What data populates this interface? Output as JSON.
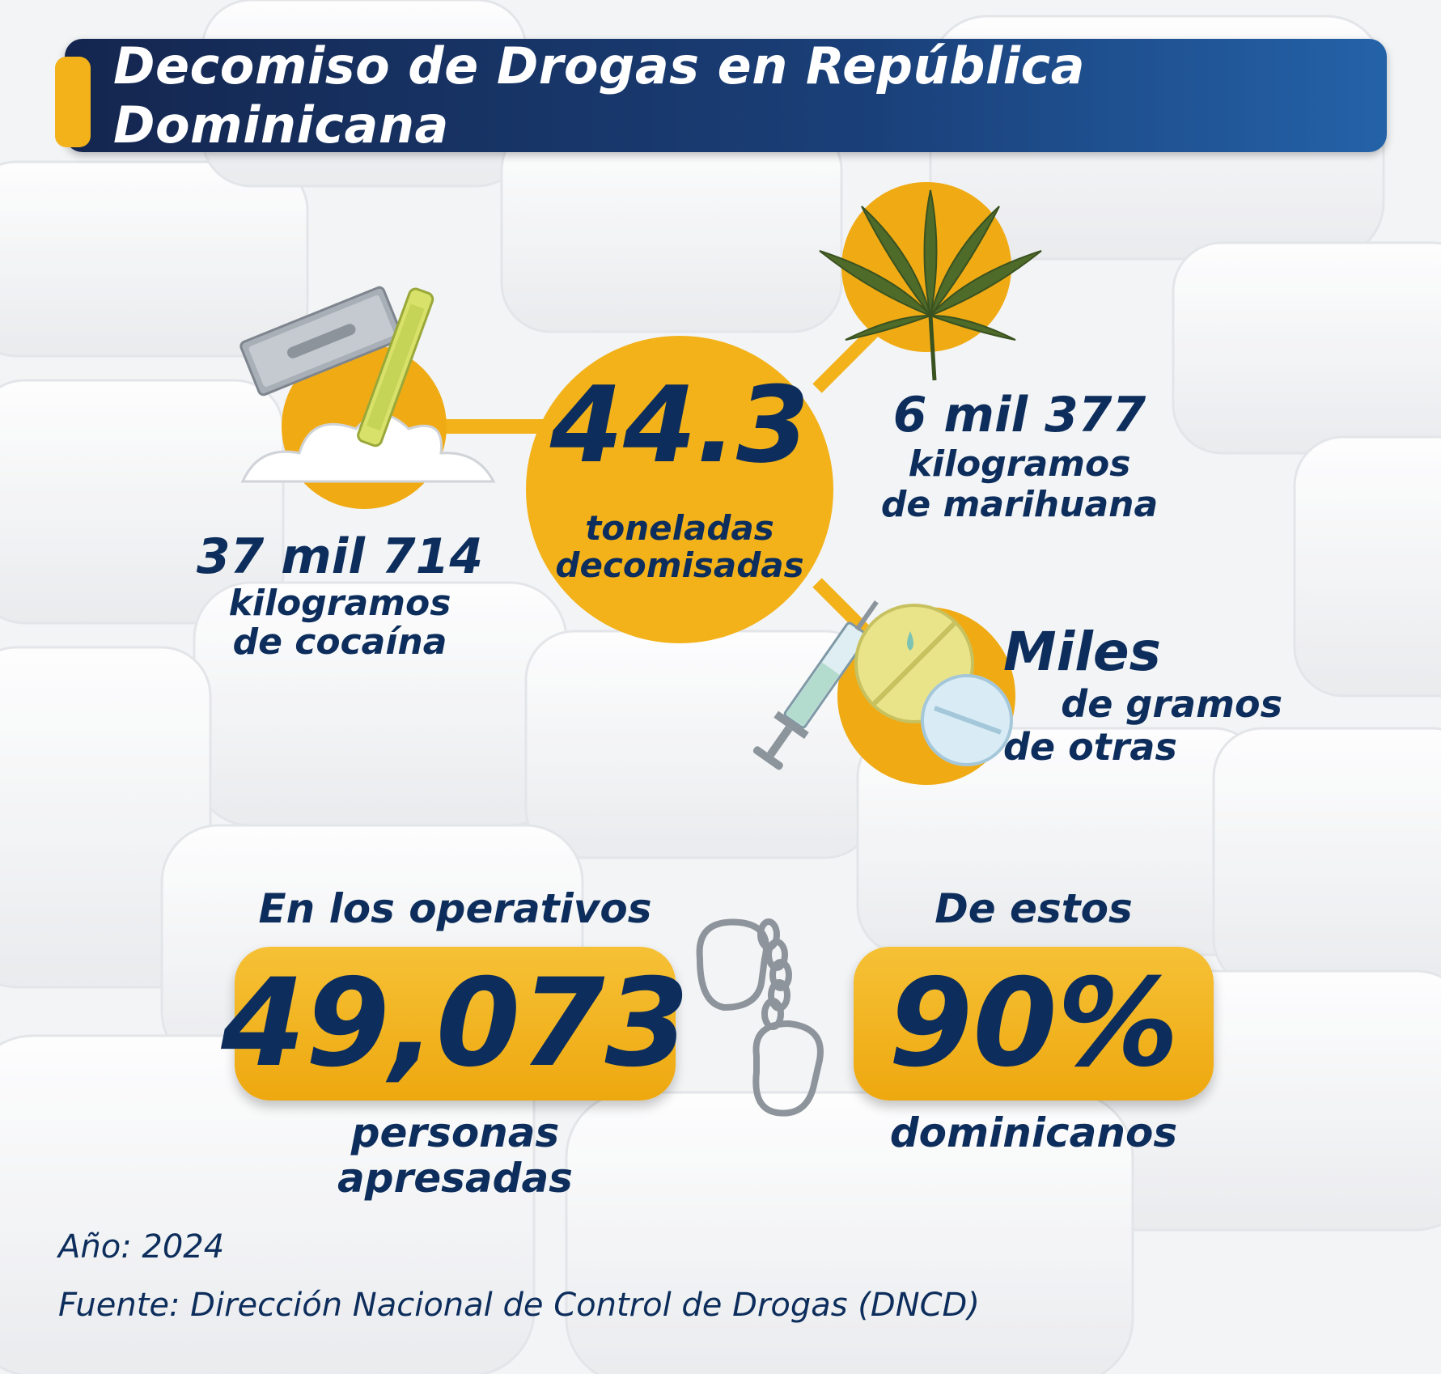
{
  "title": "Decomiso de Drogas en República Dominicana",
  "center_stat": {
    "value": "44.3",
    "label_line1": "toneladas",
    "label_line2": "decomisadas"
  },
  "cocaine": {
    "value": "37 mil 714",
    "line1": "kilogramos",
    "line2": "de cocaína"
  },
  "marijuana": {
    "value": "6 mil 377",
    "line1": "kilogramos",
    "line2": "de marihuana"
  },
  "others": {
    "value": "Miles",
    "line1": "de gramos",
    "line2": "de otras"
  },
  "arrests": {
    "heading": "En los operativos",
    "value": "49,073",
    "caption": "personas apresadas"
  },
  "nationals": {
    "heading": "De estos",
    "value": "90%",
    "caption": "dominicanos"
  },
  "footer": {
    "year": "Año: 2024",
    "source": "Fuente: Dirección Nacional de Control de Drogas (DNCD)"
  },
  "colors": {
    "navy": "#0d2e5c",
    "gold": "#f3b21a",
    "banner_start": "#14264f",
    "banner_end": "#2462a8"
  },
  "icons": [
    "razor-blade-icon",
    "powder-icon",
    "rolled-bill-icon",
    "cannabis-leaf-icon",
    "syringe-icon",
    "pills-icon",
    "handcuffs-icon"
  ]
}
